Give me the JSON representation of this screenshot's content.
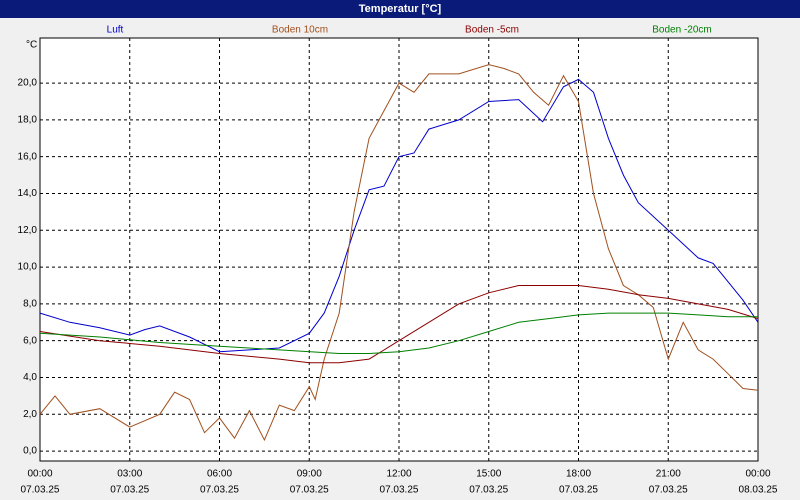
{
  "chart_data": {
    "type": "line",
    "title": "Temperatur [°C]",
    "ylabel": "°C",
    "ylim": [
      -0.54,
      22.45
    ],
    "xlim": [
      0,
      24
    ],
    "yticks": [
      {
        "value": 0,
        "label": "0,0"
      },
      {
        "value": 2,
        "label": "2,0"
      },
      {
        "value": 4,
        "label": "4,0"
      },
      {
        "value": 6,
        "label": "6,0"
      },
      {
        "value": 8,
        "label": "8,0"
      },
      {
        "value": 10,
        "label": "10,0"
      },
      {
        "value": 12,
        "label": "12,0"
      },
      {
        "value": 14,
        "label": "14,0"
      },
      {
        "value": 16,
        "label": "16,0"
      },
      {
        "value": 18,
        "label": "18,0"
      },
      {
        "value": 20,
        "label": "20,0"
      }
    ],
    "xticks": [
      {
        "value": 0,
        "label": "00:00",
        "date": "07.03.25"
      },
      {
        "value": 3,
        "label": "03:00",
        "date": "07.03.25"
      },
      {
        "value": 6,
        "label": "06:00",
        "date": "07.03.25"
      },
      {
        "value": 9,
        "label": "09:00",
        "date": "07.03.25"
      },
      {
        "value": 12,
        "label": "12:00",
        "date": "07.03.25"
      },
      {
        "value": 15,
        "label": "15:00",
        "date": "07.03.25"
      },
      {
        "value": 18,
        "label": "18:00",
        "date": "07.03.25"
      },
      {
        "value": 21,
        "label": "21:00",
        "date": "07.03.25"
      },
      {
        "value": 24,
        "label": "00:00",
        "date": "08.03.25"
      }
    ],
    "grid": true,
    "series": [
      {
        "name": "Luft",
        "color": "#0000cc",
        "x": [
          0,
          1,
          2,
          3,
          3.5,
          4,
          5,
          6,
          7,
          8,
          9,
          9.5,
          10,
          10.5,
          11,
          11.5,
          12,
          12.5,
          13,
          14,
          15,
          16,
          16.8,
          17.5,
          18,
          18.5,
          19,
          19.5,
          20,
          21,
          22,
          22.5,
          23,
          23.5,
          24
        ],
        "values": [
          7.5,
          7.0,
          6.7,
          6.3,
          6.6,
          6.8,
          6.2,
          5.4,
          5.5,
          5.6,
          6.4,
          7.5,
          9.5,
          12.0,
          14.2,
          14.4,
          16.0,
          16.2,
          17.5,
          18.0,
          19.0,
          19.1,
          17.9,
          19.8,
          20.2,
          19.5,
          17.0,
          15.0,
          13.5,
          12.0,
          10.5,
          10.2,
          9.2,
          8.2,
          7.0
        ]
      },
      {
        "name": "Boden 10cm",
        "color": "#a0501e",
        "x": [
          0,
          0.5,
          1,
          2,
          3,
          4,
          4.5,
          5,
          5.5,
          6,
          6.5,
          7,
          7.5,
          8,
          8.5,
          9,
          9.2,
          9.5,
          10,
          10.5,
          11,
          11.5,
          12,
          12.5,
          13,
          14,
          15,
          15.5,
          16,
          16.5,
          17,
          17.5,
          18,
          18.5,
          19,
          19.5,
          20,
          20.5,
          21,
          21.5,
          22,
          22.5,
          23,
          23.5,
          24
        ],
        "values": [
          2.0,
          3.0,
          2.0,
          2.3,
          1.3,
          2.0,
          3.2,
          2.8,
          1.0,
          1.8,
          0.7,
          2.2,
          0.6,
          2.5,
          2.2,
          3.5,
          2.8,
          5.0,
          7.5,
          13.0,
          17.0,
          18.5,
          20.0,
          19.5,
          20.5,
          20.5,
          21.0,
          20.8,
          20.5,
          19.5,
          18.8,
          20.4,
          19.0,
          14.0,
          11.0,
          9.0,
          8.5,
          7.8,
          5.0,
          7.0,
          5.5,
          5.0,
          4.2,
          3.4,
          3.3
        ]
      },
      {
        "name": "Boden -5cm",
        "color": "#8b0000",
        "x": [
          0,
          2,
          4,
          6,
          8,
          9,
          10,
          11,
          12,
          13,
          14,
          15,
          16,
          17,
          18,
          19,
          20,
          21,
          22,
          23,
          24
        ],
        "values": [
          6.5,
          6.0,
          5.7,
          5.3,
          5.0,
          4.8,
          4.8,
          5.0,
          6.0,
          7.0,
          8.0,
          8.6,
          9.0,
          9.0,
          9.0,
          8.8,
          8.5,
          8.3,
          8.0,
          7.7,
          7.2
        ]
      },
      {
        "name": "Boden -20cm",
        "color": "#008000",
        "x": [
          0,
          2,
          4,
          6,
          8,
          10,
          11,
          12,
          13,
          14,
          15,
          16,
          17,
          18,
          19,
          20,
          21,
          22,
          23,
          24
        ],
        "values": [
          6.4,
          6.2,
          5.9,
          5.7,
          5.5,
          5.3,
          5.3,
          5.4,
          5.6,
          6.0,
          6.5,
          7.0,
          7.2,
          7.4,
          7.5,
          7.5,
          7.5,
          7.4,
          7.3,
          7.3
        ]
      }
    ]
  }
}
